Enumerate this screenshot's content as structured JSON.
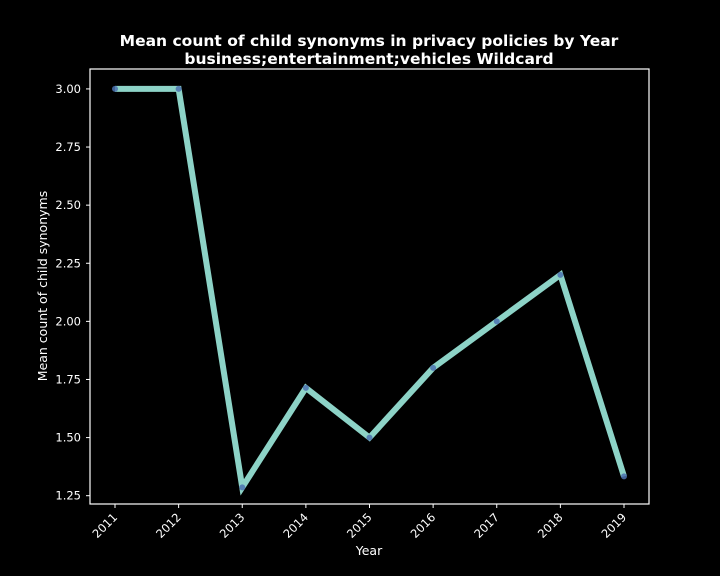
{
  "chart_data": {
    "type": "line",
    "title": "Mean count of child synonyms in privacy policies by Year",
    "subtitle": "business;entertainment;vehicles Wildcard",
    "xlabel": "Year",
    "ylabel": "Mean count of child synonyms",
    "categories": [
      "2011",
      "2012",
      "2013",
      "2014",
      "2015",
      "2016",
      "2017",
      "2018",
      "2019"
    ],
    "values": [
      3.0,
      3.0,
      1.286,
      1.714,
      1.5,
      1.8,
      2.0,
      2.2,
      1.333
    ],
    "ylim": [
      1.2143,
      3.0857
    ],
    "yticks": [
      "1.25",
      "1.50",
      "1.75",
      "2.00",
      "2.25",
      "2.50",
      "2.75",
      "3.00"
    ],
    "grid": false,
    "colors": {
      "background": "#000000",
      "line": "#8dd3c7",
      "marker": "#4c72b0",
      "text": "#ffffff",
      "axis": "#ffffff"
    }
  }
}
